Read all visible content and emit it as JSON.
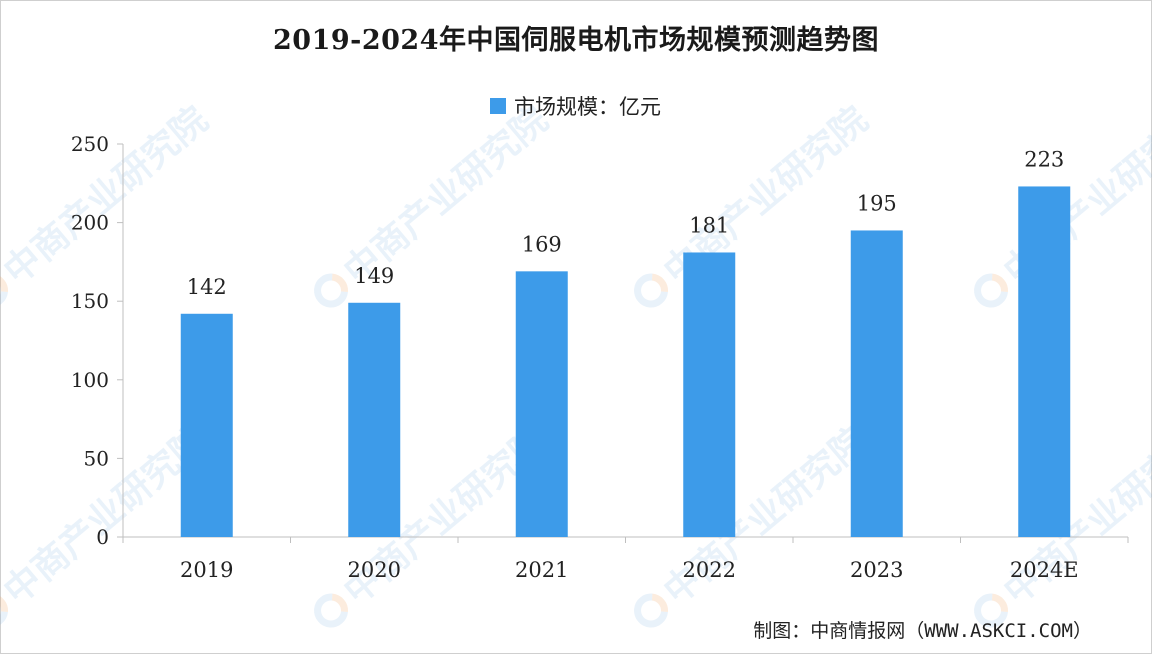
{
  "watermark_text": "中商产业研究院",
  "chart_data": {
    "type": "bar",
    "title": "2019-2024年中国伺服电机市场规模预测趋势图",
    "categories": [
      "2019",
      "2020",
      "2021",
      "2022",
      "2023",
      "2024E"
    ],
    "series": [
      {
        "name": "市场规模：亿元",
        "values": [
          142,
          149,
          169,
          181,
          195,
          223
        ],
        "color": "#3d9be9"
      }
    ],
    "ylim": [
      0,
      250
    ],
    "yticks": [
      0,
      50,
      100,
      150,
      200,
      250
    ],
    "xlabel": "",
    "ylabel": "",
    "grid": false,
    "legend_position": "top-center",
    "data_labels": true
  },
  "source_note": "制图：中商情报网（WWW.ASKCI.COM）"
}
